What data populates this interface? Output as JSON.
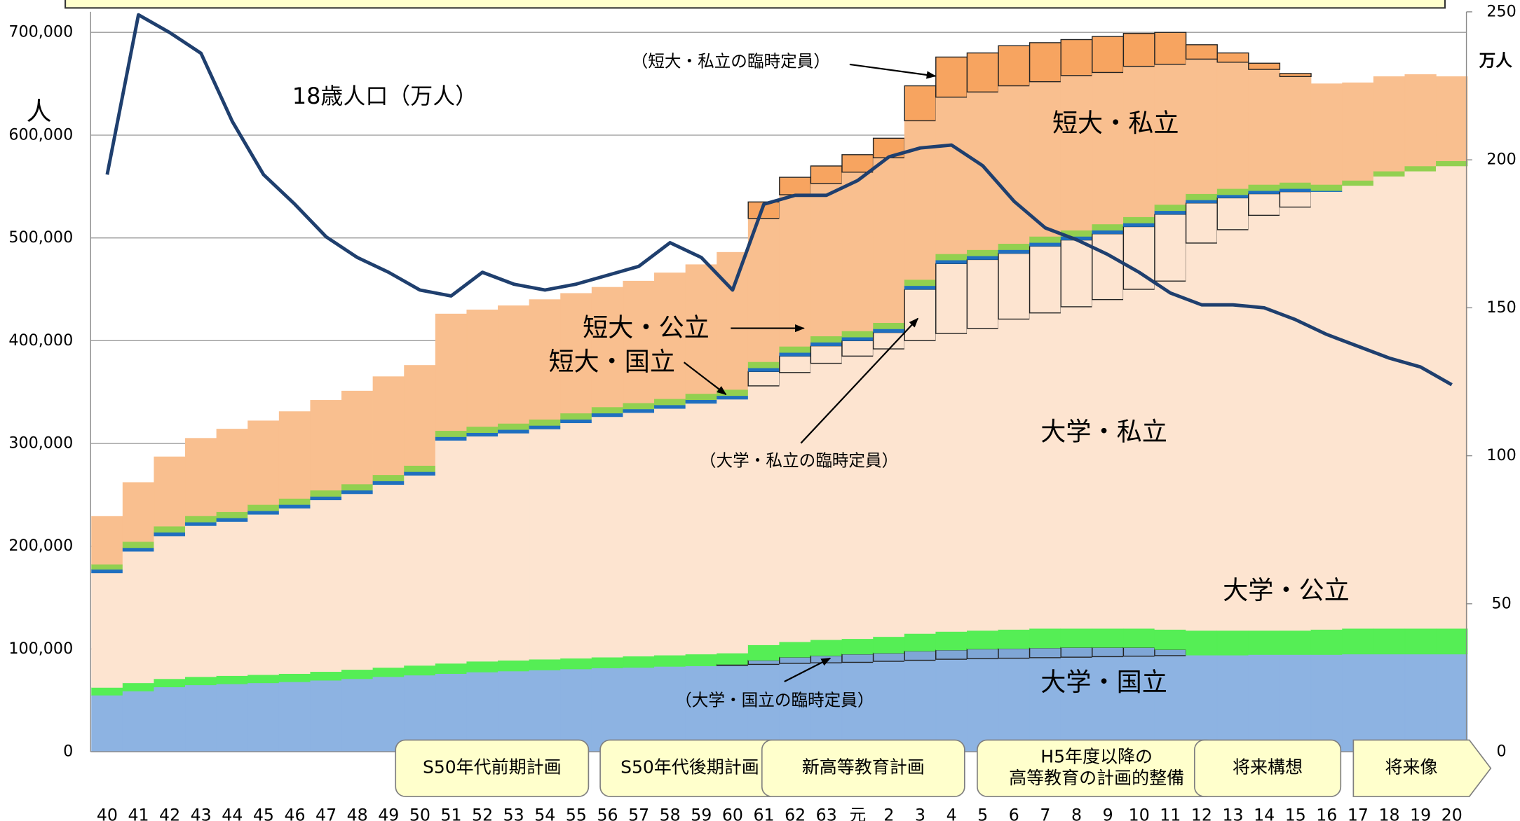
{
  "chart_data": {
    "type": "stacked-step-area",
    "categories": [
      "40",
      "41",
      "42",
      "43",
      "44",
      "45",
      "46",
      "47",
      "48",
      "49",
      "50",
      "51",
      "52",
      "53",
      "54",
      "55",
      "56",
      "57",
      "58",
      "59",
      "60",
      "61",
      "62",
      "63",
      "元",
      "2",
      "3",
      "4",
      "5",
      "6",
      "7",
      "8",
      "9",
      "10",
      "11",
      "12",
      "13",
      "14",
      "15",
      "16",
      "17",
      "18",
      "19",
      "20"
    ],
    "ylim": [
      0,
      720000
    ],
    "yticks": [
      0,
      {
        "value": 100000,
        "label": "100,000"
      },
      {
        "value": 200000,
        "label": "200,000"
      },
      {
        "value": 300000,
        "label": "300,000"
      },
      {
        "value": 400000,
        "label": "400,000"
      },
      {
        "value": 500000,
        "label": "500,000"
      },
      {
        "value": 600000,
        "label": "600,000"
      },
      {
        "value": 700000,
        "label": "700,000"
      }
    ],
    "y2lim": [
      0,
      250
    ],
    "y2ticks": [
      0,
      50,
      100,
      150,
      200,
      250
    ],
    "yunit": "人",
    "y2unit": "万人",
    "grid": true,
    "series": [
      {
        "name": "大学・国立",
        "color": "#8db3e2",
        "values": [
          55000,
          59000,
          63000,
          65000,
          66000,
          67000,
          68000,
          69500,
          71000,
          73000,
          74500,
          76000,
          77500,
          78500,
          79500,
          80500,
          81500,
          82000,
          83000,
          83500,
          84000,
          85000,
          86000,
          86500,
          87000,
          88000,
          89000,
          90000,
          90500,
          91000,
          91500,
          92000,
          92500,
          93000,
          93500,
          94000,
          94000,
          94500,
          94500,
          94500,
          95000,
          95000,
          95000,
          95000
        ]
      },
      {
        "name": "（大学・国立の臨時定員）",
        "color": "#7fa6d6",
        "outlined": true,
        "values": [
          0,
          0,
          0,
          0,
          0,
          0,
          0,
          0,
          0,
          0,
          0,
          0,
          0,
          0,
          0,
          0,
          0,
          0,
          0,
          0,
          1000,
          4000,
          6000,
          7000,
          8000,
          8000,
          9000,
          9000,
          9500,
          9500,
          9500,
          9500,
          9000,
          8500,
          6000,
          0,
          0,
          0,
          0,
          0,
          0,
          0,
          0,
          0
        ]
      },
      {
        "name": "大学・公立",
        "color": "#55ee55",
        "values": [
          7500,
          8000,
          8000,
          8000,
          8000,
          8000,
          8000,
          8500,
          9000,
          9000,
          9500,
          10000,
          10500,
          10500,
          10500,
          10500,
          10500,
          11000,
          11000,
          11500,
          11000,
          15000,
          15000,
          15500,
          15000,
          16000,
          17000,
          18000,
          18000,
          18500,
          19000,
          18500,
          18500,
          18500,
          19500,
          24000,
          24000,
          23500,
          23500,
          24500,
          25000,
          25000,
          25000,
          25000
        ]
      },
      {
        "name": "大学・私立",
        "color": "#fde4d0",
        "values": [
          111500,
          128000,
          139000,
          147000,
          150000,
          156000,
          161000,
          167000,
          171000,
          178000,
          185000,
          217000,
          219000,
          221000,
          224000,
          229000,
          234000,
          237000,
          240000,
          244000,
          247000,
          252000,
          262000,
          269000,
          275000,
          280000,
          285000,
          290000,
          294000,
          302000,
          307000,
          313000,
          320000,
          330000,
          339000,
          377000,
          390000,
          404000,
          412000,
          426000,
          431000,
          440000,
          445000,
          450000
        ]
      },
      {
        "name": "（大学・私立の臨時定員）",
        "color": "#fde4d0",
        "outlined": true,
        "values": [
          0,
          0,
          0,
          0,
          0,
          0,
          0,
          0,
          0,
          0,
          0,
          0,
          0,
          0,
          0,
          0,
          0,
          0,
          0,
          0,
          0,
          14000,
          16000,
          17000,
          15000,
          16000,
          50000,
          68000,
          67000,
          64000,
          65000,
          65000,
          64000,
          61000,
          65000,
          39000,
          31000,
          21000,
          15000,
          0,
          0,
          0,
          0,
          0
        ]
      },
      {
        "name": "短大・国立",
        "color": "#1f6fbf",
        "values": [
          3500,
          3500,
          3500,
          3500,
          3500,
          3500,
          3500,
          3500,
          3500,
          3500,
          3500,
          3500,
          3500,
          3500,
          3500,
          3500,
          3500,
          3500,
          3500,
          3500,
          3500,
          3500,
          3500,
          3500,
          3500,
          3500,
          3500,
          3500,
          3500,
          3500,
          3500,
          3500,
          3500,
          3500,
          3500,
          3000,
          3000,
          3000,
          3000,
          1000,
          0,
          0,
          0,
          0
        ]
      },
      {
        "name": "短大・公立",
        "color": "#92d050",
        "values": [
          5000,
          6000,
          6000,
          6000,
          6000,
          6000,
          6000,
          6000,
          6000,
          6000,
          6000,
          6000,
          6000,
          6000,
          6000,
          6000,
          6000,
          6000,
          6000,
          6000,
          6000,
          6000,
          6000,
          6000,
          6000,
          6000,
          6000,
          6000,
          6000,
          6000,
          6000,
          6000,
          6000,
          6000,
          6000,
          6000,
          6000,
          6000,
          6000,
          6000,
          5000,
          5000,
          5000,
          5000
        ]
      },
      {
        "name": "短大・私立",
        "color": "#f9bf8f",
        "values": [
          46500,
          57500,
          67500,
          75500,
          80500,
          81500,
          84500,
          87500,
          90500,
          95500,
          97500,
          113500,
          113500,
          114500,
          116500,
          116500,
          116500,
          118500,
          122500,
          125500,
          133500,
          139500,
          147500,
          148500,
          154500,
          160500,
          154500,
          152500,
          153500,
          153500,
          150500,
          150500,
          147500,
          146500,
          136500,
          131000,
          123000,
          112000,
          103000,
          98000,
          95000,
          92000,
          89000,
          82000
        ]
      },
      {
        "name": "（短大・私立の臨時定員）",
        "color": "#f7a460",
        "outlined": true,
        "values": [
          0,
          0,
          0,
          0,
          0,
          0,
          0,
          0,
          0,
          0,
          0,
          0,
          0,
          0,
          0,
          0,
          0,
          0,
          0,
          0,
          0,
          16000,
          17000,
          17000,
          17000,
          19000,
          34000,
          39000,
          38000,
          39000,
          38000,
          35000,
          35000,
          32000,
          31000,
          14000,
          9000,
          6000,
          3000,
          0,
          0,
          0,
          0,
          0
        ]
      },
      {
        "name": "18歳人口（万人）",
        "color": "#1f3f6e",
        "axis": "y2",
        "type": "line",
        "values": [
          195,
          249,
          243,
          236,
          213,
          195,
          185,
          174,
          167,
          162,
          156,
          154,
          162,
          158,
          156,
          158,
          161,
          164,
          172,
          167,
          156,
          185,
          188,
          188,
          193,
          201,
          204,
          205,
          198,
          186,
          177,
          173,
          168,
          162,
          155,
          151,
          151,
          150,
          146,
          141,
          137,
          133,
          130,
          124
        ]
      }
    ],
    "phases": [
      {
        "lines": [
          "S50年代前期計画"
        ]
      },
      {
        "lines": [
          "S50年代後期計画"
        ]
      },
      {
        "lines": [
          "新高等教育計画"
        ]
      },
      {
        "lines": [
          "H5年度以降の",
          "高等教育の計画的整備"
        ]
      },
      {
        "lines": [
          "将来構想"
        ]
      },
      {
        "lines": [
          "将来像"
        ]
      }
    ]
  }
}
